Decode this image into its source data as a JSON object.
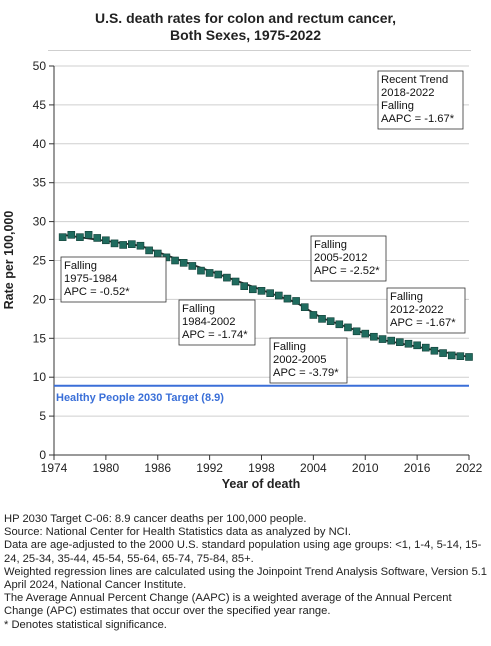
{
  "title": {
    "line1": "U.S. death rates for colon and rectum cancer,",
    "line2": "Both Sexes,  1975-2022"
  },
  "chart_data": {
    "type": "scatter",
    "title": "U.S. death rates for colon and rectum cancer, Both Sexes,  1975-2022",
    "xlabel": "Year of death",
    "ylabel": "Rate per 100,000",
    "xlim": [
      1974,
      2022
    ],
    "ylim": [
      0,
      50
    ],
    "x_ticks": [
      1974,
      1980,
      1986,
      1992,
      1998,
      2004,
      2010,
      2016,
      2022
    ],
    "y_ticks": [
      0,
      5,
      10,
      15,
      20,
      25,
      30,
      35,
      40,
      45,
      50
    ],
    "grid": "horizontal",
    "marker_color": "#1f6b5e",
    "line_color": "#2b2b2b",
    "x": [
      1975,
      1976,
      1977,
      1978,
      1979,
      1980,
      1981,
      1982,
      1983,
      1984,
      1985,
      1986,
      1987,
      1988,
      1989,
      1990,
      1991,
      1992,
      1993,
      1994,
      1995,
      1996,
      1997,
      1998,
      1999,
      2000,
      2001,
      2002,
      2003,
      2004,
      2005,
      2006,
      2007,
      2008,
      2009,
      2010,
      2011,
      2012,
      2013,
      2014,
      2015,
      2016,
      2017,
      2018,
      2019,
      2020,
      2021,
      2022
    ],
    "y": [
      28.0,
      28.3,
      28.0,
      28.3,
      27.9,
      27.6,
      27.2,
      27.0,
      27.1,
      26.9,
      26.3,
      25.9,
      25.4,
      25.0,
      24.7,
      24.3,
      23.7,
      23.4,
      23.2,
      22.8,
      22.3,
      21.7,
      21.3,
      21.1,
      20.8,
      20.5,
      20.1,
      19.8,
      19.0,
      18.0,
      17.5,
      17.2,
      16.8,
      16.4,
      15.9,
      15.6,
      15.2,
      14.9,
      14.7,
      14.5,
      14.3,
      14.1,
      13.8,
      13.4,
      13.1,
      12.8,
      12.7,
      12.6
    ],
    "trend_segments": [
      {
        "x": [
          1975,
          1984
        ],
        "y": [
          28.3,
          26.9
        ]
      },
      {
        "x": [
          1984,
          2002
        ],
        "y": [
          26.9,
          19.6
        ]
      },
      {
        "x": [
          2002,
          2005
        ],
        "y": [
          19.6,
          17.6
        ]
      },
      {
        "x": [
          2005,
          2012
        ],
        "y": [
          17.6,
          14.8
        ]
      },
      {
        "x": [
          2012,
          2022
        ],
        "y": [
          14.8,
          12.6
        ]
      }
    ],
    "target": {
      "label": "Healthy People 2030 Target (8.9)",
      "value": 8.9,
      "color": "#3a6fd8"
    },
    "annotations": [
      {
        "lines": [
          "Recent Trend",
          "2018-2022",
          "Falling",
          "AAPC = -1.67*"
        ]
      },
      {
        "lines": [
          "Falling",
          "1975-1984",
          "APC = -0.52*"
        ]
      },
      {
        "lines": [
          "Falling",
          "1984-2002",
          "APC = -1.74*"
        ]
      },
      {
        "lines": [
          "Falling",
          "2002-2005",
          "APC = -3.79*"
        ]
      },
      {
        "lines": [
          "Falling",
          "2005-2012",
          "APC = -2.52*"
        ]
      },
      {
        "lines": [
          "Falling",
          "2012-2022",
          "APC = -1.67*"
        ]
      }
    ]
  },
  "footnotes": [
    "HP 2030 Target C-06: 8.9 cancer deaths per 100,000 people.",
    "Source: National Center for Health Statistics data as analyzed by NCI.",
    "Data are age-adjusted to the 2000 U.S. standard population using age groups: <1, 1-4, 5-14, 15-24, 25-34, 35-44, 45-54, 55-64, 65-74, 75-84, 85+.",
    "Weighted regression lines are calculated using the Joinpoint Trend Analysis Software, Version 5.1 April 2024, National Cancer Institute.",
    "The Average Annual Percent Change (AAPC) is a weighted average of the Annual Percent Change (APC) estimates that occur over the specified year range.",
    "* Denotes statistical significance."
  ]
}
